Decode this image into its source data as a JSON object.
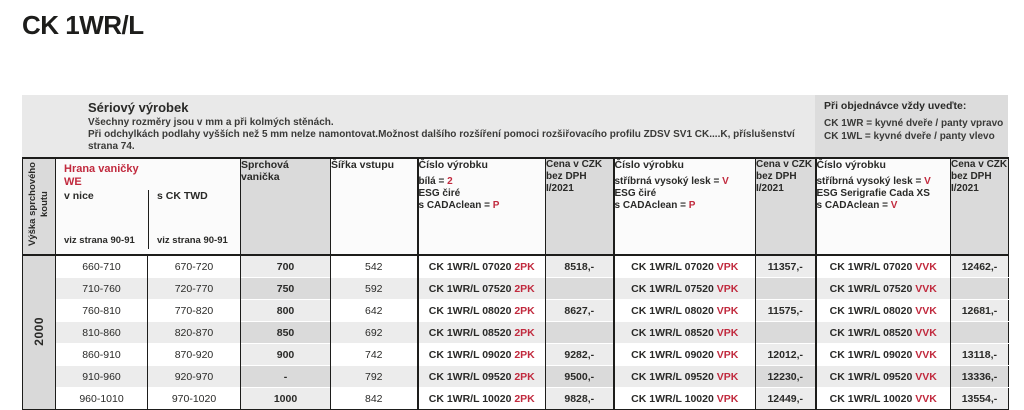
{
  "page": {
    "title": "CK 1WR/L"
  },
  "info": {
    "heading": "Sériový výrobek",
    "line1": "Všechny rozměry jsou v mm a při kolmých stěnách.",
    "line2": "Při odchylkách podlahy vyšších než 5 mm nelze namontovat.Možnost dalšího rozšíření pomoci rozšiřovacího profilu ZDSV SV1 CK....K, příslušenství",
    "line3": "strana 74."
  },
  "order_box": {
    "heading": "Při objednávce vždy uveďte:",
    "line1": "CK 1WR = kyvné dveře / panty vpravo",
    "line2": "CK 1WL = kyvné dveře / panty vlevo"
  },
  "table": {
    "height_col_label": "Výška sprchového koutu",
    "height_value": "2000",
    "hrana": {
      "title": "Hrana vaničky",
      "subtitle": "WE",
      "col1": "v nice",
      "col2": "s CK TWD",
      "note": "viz strana 90-91"
    },
    "vanicka_label": "Sprchová vanička",
    "sirka_label": "Šířka vstupu",
    "price_header": {
      "l1": "Cena v CZK",
      "l2": "bez DPH",
      "l3": "I/2021"
    },
    "groups": [
      {
        "title": "Číslo výrobku",
        "specs": [
          [
            {
              "t": "bílá = "
            },
            {
              "t": "2",
              "red": true
            }
          ],
          [
            {
              "t": "ESG čiré"
            }
          ],
          [
            {
              "t": "s CADAclean = "
            },
            {
              "t": "P",
              "red": true
            }
          ]
        ]
      },
      {
        "title": "Číslo výrobku",
        "specs": [
          [
            {
              "t": "stříbrná vysoký lesk = "
            },
            {
              "t": "V",
              "red": true
            }
          ],
          [
            {
              "t": "ESG čiré"
            }
          ],
          [
            {
              "t": "s CADAclean = "
            },
            {
              "t": "P",
              "red": true
            }
          ]
        ]
      },
      {
        "title": "Číslo výrobku",
        "specs": [
          [
            {
              "t": "stříbrná vysoký lesk = "
            },
            {
              "t": "V",
              "red": true
            }
          ],
          [
            {
              "t": "ESG Serigrafie Cada XS"
            }
          ],
          [
            {
              "t": "s CADAclean = "
            },
            {
              "t": "V",
              "red": true
            }
          ]
        ]
      }
    ],
    "rows": [
      {
        "v_nice": "660-710",
        "s_twd": "670-720",
        "vanicka": "700",
        "sirka": "542",
        "variants": [
          {
            "code": "CK 1WR/L 07020",
            "suffix": "2PK",
            "price": "8518,-"
          },
          {
            "code": "CK 1WR/L 07020",
            "suffix": "VPK",
            "price": "11357,-"
          },
          {
            "code": "CK 1WR/L 07020",
            "suffix": "VVK",
            "price": "12462,-"
          }
        ]
      },
      {
        "v_nice": "710-760",
        "s_twd": "720-770",
        "vanicka": "750",
        "sirka": "592",
        "variants": [
          {
            "code": "CK 1WR/L 07520",
            "suffix": "2PK",
            "price": ""
          },
          {
            "code": "CK 1WR/L 07520",
            "suffix": "VPK",
            "price": ""
          },
          {
            "code": "CK 1WR/L 07520",
            "suffix": "VVK",
            "price": ""
          }
        ]
      },
      {
        "v_nice": "760-810",
        "s_twd": "770-820",
        "vanicka": "800",
        "sirka": "642",
        "variants": [
          {
            "code": "CK 1WR/L 08020",
            "suffix": "2PK",
            "price": "8627,-"
          },
          {
            "code": "CK 1WR/L 08020",
            "suffix": "VPK",
            "price": "11575,-"
          },
          {
            "code": "CK 1WR/L 08020",
            "suffix": "VVK",
            "price": "12681,-"
          }
        ]
      },
      {
        "v_nice": "810-860",
        "s_twd": "820-870",
        "vanicka": "850",
        "sirka": "692",
        "variants": [
          {
            "code": "CK 1WR/L 08520",
            "suffix": "2PK",
            "price": ""
          },
          {
            "code": "CK 1WR/L 08520",
            "suffix": "VPK",
            "price": ""
          },
          {
            "code": "CK 1WR/L 08520",
            "suffix": "VVK",
            "price": ""
          }
        ]
      },
      {
        "v_nice": "860-910",
        "s_twd": "870-920",
        "vanicka": "900",
        "sirka": "742",
        "variants": [
          {
            "code": "CK 1WR/L 09020",
            "suffix": "2PK",
            "price": "9282,-"
          },
          {
            "code": "CK 1WR/L 09020",
            "suffix": "VPK",
            "price": "12012,-"
          },
          {
            "code": "CK 1WR/L 09020",
            "suffix": "VVK",
            "price": "13118,-"
          }
        ]
      },
      {
        "v_nice": "910-960",
        "s_twd": "920-970",
        "vanicka": "-",
        "sirka": "792",
        "variants": [
          {
            "code": "CK 1WR/L 09520",
            "suffix": "2PK",
            "price": "9500,-"
          },
          {
            "code": "CK 1WR/L 09520",
            "suffix": "VPK",
            "price": "12230,-"
          },
          {
            "code": "CK 1WR/L 09520",
            "suffix": "VVK",
            "price": "13336,-"
          }
        ]
      },
      {
        "v_nice": "960-1010",
        "s_twd": "970-1020",
        "vanicka": "1000",
        "sirka": "842",
        "variants": [
          {
            "code": "CK 1WR/L 10020",
            "suffix": "2PK",
            "price": "9828,-"
          },
          {
            "code": "CK 1WR/L 10020",
            "suffix": "VPK",
            "price": "12449,-"
          },
          {
            "code": "CK 1WR/L 10020",
            "suffix": "VVK",
            "price": "13554,-"
          }
        ]
      }
    ]
  },
  "colors": {
    "accent_red": "#c12a3e",
    "band_bg": "#e9e9e9",
    "box_bg": "#dcdcdc",
    "line": "#1d1d1b"
  }
}
